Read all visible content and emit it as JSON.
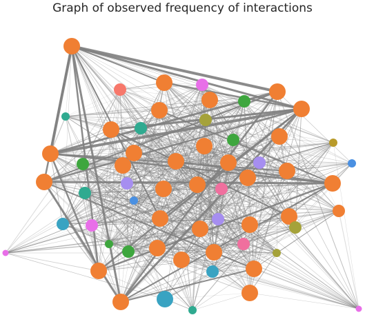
{
  "title": "Graph of observed frequency of interactions",
  "colors": {
    "edge": "#7f7f7f",
    "orange": "#f07f33",
    "salmon": "#f7786b",
    "magenta": "#e86fe8",
    "pink": "#f06f9e",
    "green": "#3ea63e",
    "olive": "#a5a23a",
    "teal": "#2faa90",
    "cyan": "#39a3c2",
    "blue": "#4a90e2",
    "lavender": "#a68ef0",
    "gold": "#b89a2a"
  },
  "diagram": {
    "type": "network",
    "nodes": [
      {
        "id": "n1",
        "color": "orange",
        "size": "large"
      },
      {
        "id": "n2",
        "color": "salmon",
        "size": "medium"
      },
      {
        "id": "n3",
        "color": "orange",
        "size": "large"
      },
      {
        "id": "n4",
        "color": "magenta",
        "size": "medium"
      },
      {
        "id": "n5",
        "color": "orange",
        "size": "large"
      },
      {
        "id": "n6",
        "color": "orange",
        "size": "large"
      },
      {
        "id": "n7",
        "color": "green",
        "size": "medium"
      },
      {
        "id": "n8",
        "color": "orange",
        "size": "large"
      },
      {
        "id": "n9",
        "color": "orange",
        "size": "large"
      },
      {
        "id": "n10",
        "color": "teal",
        "size": "small"
      },
      {
        "id": "n11",
        "color": "olive",
        "size": "medium"
      },
      {
        "id": "n12",
        "color": "orange",
        "size": "large"
      },
      {
        "id": "n13",
        "color": "teal",
        "size": "medium"
      },
      {
        "id": "n14",
        "color": "green",
        "size": "medium"
      },
      {
        "id": "n15",
        "color": "orange",
        "size": "large"
      },
      {
        "id": "n16",
        "color": "orange",
        "size": "large"
      },
      {
        "id": "n17",
        "color": "gold",
        "size": "small"
      },
      {
        "id": "n18",
        "color": "orange",
        "size": "large"
      },
      {
        "id": "n19",
        "color": "orange",
        "size": "large"
      },
      {
        "id": "n20",
        "color": "green",
        "size": "medium"
      },
      {
        "id": "n21",
        "color": "orange",
        "size": "large"
      },
      {
        "id": "n22",
        "color": "orange",
        "size": "large"
      },
      {
        "id": "n23",
        "color": "orange",
        "size": "large"
      },
      {
        "id": "n24",
        "color": "blue",
        "size": "small"
      },
      {
        "id": "n25",
        "color": "lavender",
        "size": "medium"
      },
      {
        "id": "n26",
        "color": "orange",
        "size": "large"
      },
      {
        "id": "n27",
        "color": "orange",
        "size": "large"
      },
      {
        "id": "n28",
        "color": "teal",
        "size": "medium"
      },
      {
        "id": "n29",
        "color": "lavender",
        "size": "medium"
      },
      {
        "id": "n30",
        "color": "orange",
        "size": "large"
      },
      {
        "id": "n31",
        "color": "orange",
        "size": "large"
      },
      {
        "id": "n32",
        "color": "pink",
        "size": "medium"
      },
      {
        "id": "n33",
        "color": "orange",
        "size": "large"
      },
      {
        "id": "n34",
        "color": "orange",
        "size": "large"
      },
      {
        "id": "n35",
        "color": "blue",
        "size": "small"
      },
      {
        "id": "n36",
        "color": "orange",
        "size": "large"
      },
      {
        "id": "n37",
        "color": "orange",
        "size": "large"
      },
      {
        "id": "n38",
        "color": "lavender",
        "size": "medium"
      },
      {
        "id": "n39",
        "color": "orange",
        "size": "large"
      },
      {
        "id": "n40",
        "color": "orange",
        "size": "large"
      },
      {
        "id": "n41",
        "color": "cyan",
        "size": "medium"
      },
      {
        "id": "n42",
        "color": "magenta",
        "size": "medium"
      },
      {
        "id": "n43",
        "color": "olive",
        "size": "small"
      },
      {
        "id": "n44",
        "color": "olive",
        "size": "medium"
      },
      {
        "id": "n45",
        "color": "orange",
        "size": "medium"
      },
      {
        "id": "n46",
        "color": "orange",
        "size": "large"
      },
      {
        "id": "n47",
        "color": "green",
        "size": "medium"
      },
      {
        "id": "n48",
        "color": "orange",
        "size": "large"
      },
      {
        "id": "n49",
        "color": "orange",
        "size": "large"
      },
      {
        "id": "n50",
        "color": "pink",
        "size": "medium"
      },
      {
        "id": "n51",
        "color": "green",
        "size": "small"
      },
      {
        "id": "n52",
        "color": "magenta",
        "size": "tiny"
      },
      {
        "id": "n53",
        "color": "orange",
        "size": "large"
      },
      {
        "id": "n54",
        "color": "cyan",
        "size": "medium"
      },
      {
        "id": "n55",
        "color": "orange",
        "size": "large"
      },
      {
        "id": "n56",
        "color": "orange",
        "size": "large"
      },
      {
        "id": "n57",
        "color": "cyan",
        "size": "large"
      },
      {
        "id": "n58",
        "color": "teal",
        "size": "small"
      },
      {
        "id": "n59",
        "color": "orange",
        "size": "large"
      },
      {
        "id": "n60",
        "color": "magenta",
        "size": "tiny"
      }
    ]
  }
}
